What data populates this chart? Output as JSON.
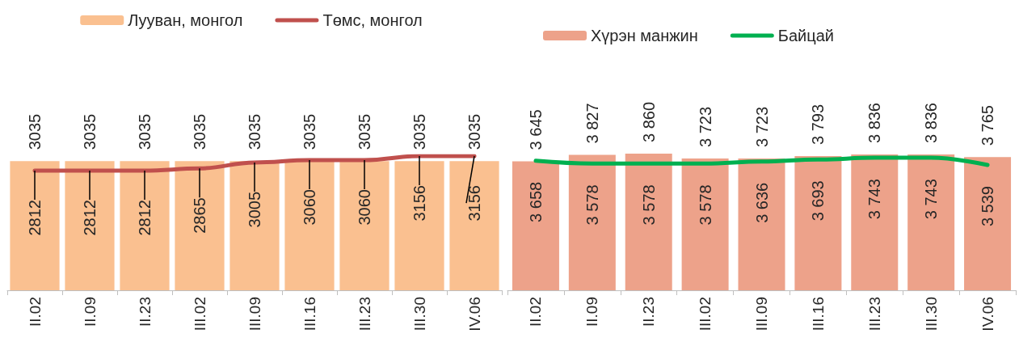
{
  "chart_data": [
    {
      "type": "bar",
      "categories": [
        "II.02",
        "II.09",
        "II.23",
        "III.02",
        "III.09",
        "III.16",
        "III.23",
        "III.30",
        "IV.06"
      ],
      "series": [
        {
          "name": "Лууван, монгол",
          "color": "#fac090",
          "values": [
            3035,
            3035,
            3035,
            3035,
            3035,
            3035,
            3035,
            3035,
            3035
          ]
        },
        {
          "name": "Төмс, монгол",
          "type": "line",
          "color": "#c0504d",
          "values": [
            2812,
            2812,
            2812,
            2865,
            3005,
            3060,
            3060,
            3156,
            3156
          ]
        }
      ],
      "data_labels": true,
      "legend": "top",
      "tick_labels": "x"
    },
    {
      "type": "bar",
      "categories": [
        "II.02",
        "II.09",
        "II.23",
        "III.02",
        "III.09",
        "III.16",
        "III.23",
        "III.30",
        "IV.06"
      ],
      "series": [
        {
          "name": "Хүрэн манжин",
          "color": "#eda28a",
          "values": [
            3645,
            3827,
            3860,
            3723,
            3723,
            3793,
            3836,
            3836,
            3765
          ],
          "value_labels": [
            "3 645",
            "3 827",
            "3 860",
            "3 723",
            "3 723",
            "3 793",
            "3 836",
            "3 836",
            "3 765"
          ]
        },
        {
          "name": "Байцай",
          "type": "line",
          "color": "#00b050",
          "values": [
            3658,
            3578,
            3578,
            3578,
            3636,
            3693,
            3743,
            3743,
            3539
          ],
          "value_labels": [
            "3 658",
            "3 578",
            "3 578",
            "3 578",
            "3 636",
            "3 693",
            "3 743",
            "3 743",
            "3 539"
          ]
        }
      ],
      "legend": "top",
      "tick_labels": "x"
    }
  ]
}
